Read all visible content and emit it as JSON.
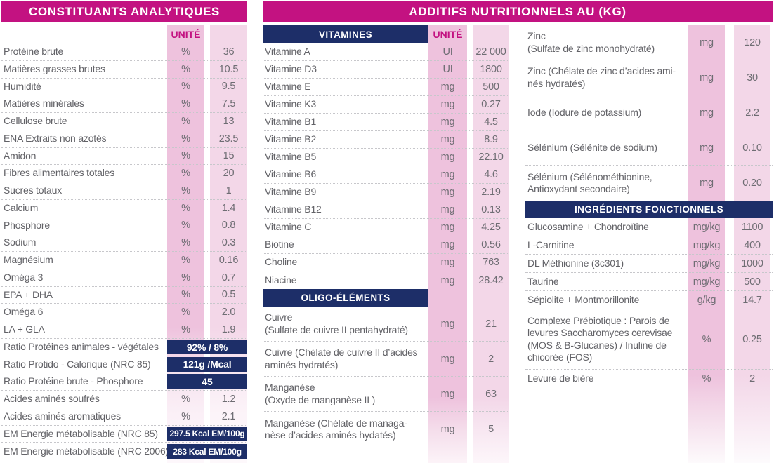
{
  "colors": {
    "magenta": "#c31281",
    "navy": "#1d2e68",
    "pink_unit": "#eec2dd",
    "pink_value": "#f3d7e8",
    "text_gray": "#626267"
  },
  "left_panel": {
    "title": "CONSTITUANTS ANALYTIQUES",
    "unit_header": "UNITÉ",
    "rows": [
      {
        "label": "Protéine brute",
        "unit": "%",
        "value": "36"
      },
      {
        "label": "Matières grasses brutes",
        "unit": "%",
        "value": "10.5"
      },
      {
        "label": "Humidité",
        "unit": "%",
        "value": "9.5"
      },
      {
        "label": "Matières minérales",
        "unit": "%",
        "value": "7.5"
      },
      {
        "label": "Cellulose brute",
        "unit": "%",
        "value": "13"
      },
      {
        "label": "ENA Extraits non azotés",
        "unit": "%",
        "value": "23.5"
      },
      {
        "label": "Amidon",
        "unit": "%",
        "value": "15"
      },
      {
        "label": "Fibres alimentaires totales",
        "unit": "%",
        "value": "20"
      },
      {
        "label": "Sucres totaux",
        "unit": "%",
        "value": "1"
      },
      {
        "label": "Calcium",
        "unit": "%",
        "value": "1.4"
      },
      {
        "label": "Phosphore",
        "unit": "%",
        "value": "0.8"
      },
      {
        "label": "Sodium",
        "unit": "%",
        "value": "0.3"
      },
      {
        "label": "Magnésium",
        "unit": "%",
        "value": "0.16"
      },
      {
        "label": "Oméga 3",
        "unit": "%",
        "value": "0.7"
      },
      {
        "label": "EPA + DHA",
        "unit": "%",
        "value": "0.5"
      },
      {
        "label": "Oméga 6",
        "unit": "%",
        "value": "2.0"
      },
      {
        "label": "LA + GLA",
        "unit": "%",
        "value": "1.9"
      },
      {
        "label": "Ratio Protéines animales - végétales",
        "badge": "92% / 8%"
      },
      {
        "label": "Ratio Protido - Calorique (NRC 85)",
        "badge": "121g /Mcal"
      },
      {
        "label": "Ratio Protéine brute - Phosphore",
        "badge": "45"
      },
      {
        "label": "Acides aminés soufrés",
        "unit": "%",
        "value": "1.2"
      },
      {
        "label": "Acides aminés aromatiques",
        "unit": "%",
        "value": "2.1"
      },
      {
        "label": "EM Energie métabolisable  (NRC 85)",
        "badge": "297.5 Kcal EM/100g",
        "small": true
      },
      {
        "label": "EM Energie métabolisable (NRC 2006)",
        "badge": "283 Kcal EM/100g",
        "small": true
      }
    ]
  },
  "right_panel": {
    "title": "ADDITIFS NUTRITIONNELS AU (KG)",
    "vitamins_section": {
      "header": "VITAMINES",
      "unit_header": "UNITÉ",
      "rows": [
        {
          "label": "Vitamine A",
          "unit": "UI",
          "value": "22 000"
        },
        {
          "label": "Vitamine D3",
          "unit": "UI",
          "value": "1800"
        },
        {
          "label": "Vitamine E",
          "unit": "mg",
          "value": "500"
        },
        {
          "label": "Vitamine K3",
          "unit": "mg",
          "value": "0.27"
        },
        {
          "label": "Vitamine B1",
          "unit": "mg",
          "value": "4.5"
        },
        {
          "label": "Vitamine B2",
          "unit": "mg",
          "value": "8.9"
        },
        {
          "label": "Vitamine B5",
          "unit": "mg",
          "value": "22.10"
        },
        {
          "label": "Vitamine B6",
          "unit": "mg",
          "value": "4.6"
        },
        {
          "label": "Vitamine B9",
          "unit": "mg",
          "value": "2.19"
        },
        {
          "label": "Vitamine B12",
          "unit": "mg",
          "value": "0.13"
        },
        {
          "label": "Vitamine C",
          "unit": "mg",
          "value": "4.25"
        },
        {
          "label": "Biotine",
          "unit": "mg",
          "value": "0.56"
        },
        {
          "label": "Choline",
          "unit": "mg",
          "value": "763"
        },
        {
          "label": "Niacine",
          "unit": "mg",
          "value": "28.42"
        }
      ]
    },
    "oligo_section": {
      "header": "OLIGO-ÉLÉMENTS",
      "rows": [
        {
          "label": "Cuivre\n(Sulfate de cuivre II pentahydraté)",
          "unit": "mg",
          "value": "21"
        },
        {
          "label": "Cuivre (Chélate de cuivre II d’acides\naminés hydratés)",
          "unit": "mg",
          "value": "2"
        },
        {
          "label": "Manganèse\n(Oxyde de manganèse II )",
          "unit": "mg",
          "value": "63"
        },
        {
          "label": "Manganèse (Chélate de managa-\nnèse d’acides aminés hydatés)",
          "unit": "mg",
          "value": "5"
        }
      ]
    },
    "minerals_rows": [
      {
        "label": "Zinc\n(Sulfate de zinc monohydraté)",
        "unit": "mg",
        "value": "120"
      },
      {
        "label": "Zinc (Chélate de zinc d’acides ami-\nnés hydratés)",
        "unit": "mg",
        "value": "30"
      },
      {
        "label": "Iode (Iodure de potassium)",
        "unit": "mg",
        "value": "2.2"
      },
      {
        "label": "Sélénium (Sélénite de sodium)",
        "unit": "mg",
        "value": "0.10"
      },
      {
        "label": "Sélénium (Sélénométhionine,\nAntioxydant secondaire)",
        "unit": "mg",
        "value": "0.20"
      }
    ],
    "functional_section": {
      "header": "INGRÉDIENTS FONCTIONNELS",
      "rows": [
        {
          "label": "Glucosamine + Chondroïtine",
          "unit": "mg/kg",
          "value": "1100"
        },
        {
          "label": "L-Carnitine",
          "unit": "mg/kg",
          "value": "400"
        },
        {
          "label": "DL Méthionine (3c301)",
          "unit": "mg/kg",
          "value": "1000"
        },
        {
          "label": "Taurine",
          "unit": "mg/kg",
          "value": "500"
        },
        {
          "label": "Sépiolite + Montmorillonite",
          "unit": "g/kg",
          "value": "14.7"
        },
        {
          "label": "Complexe Prébiotique : Parois de\nlevures Saccharomyces cerevisae\n(MOS & B-Glucanes) / Inuline de\nchicorée (FOS)",
          "unit": "%",
          "value": "0.25",
          "tall": true
        },
        {
          "label": "Levure de bière",
          "unit": "%",
          "value": "2"
        }
      ]
    }
  }
}
